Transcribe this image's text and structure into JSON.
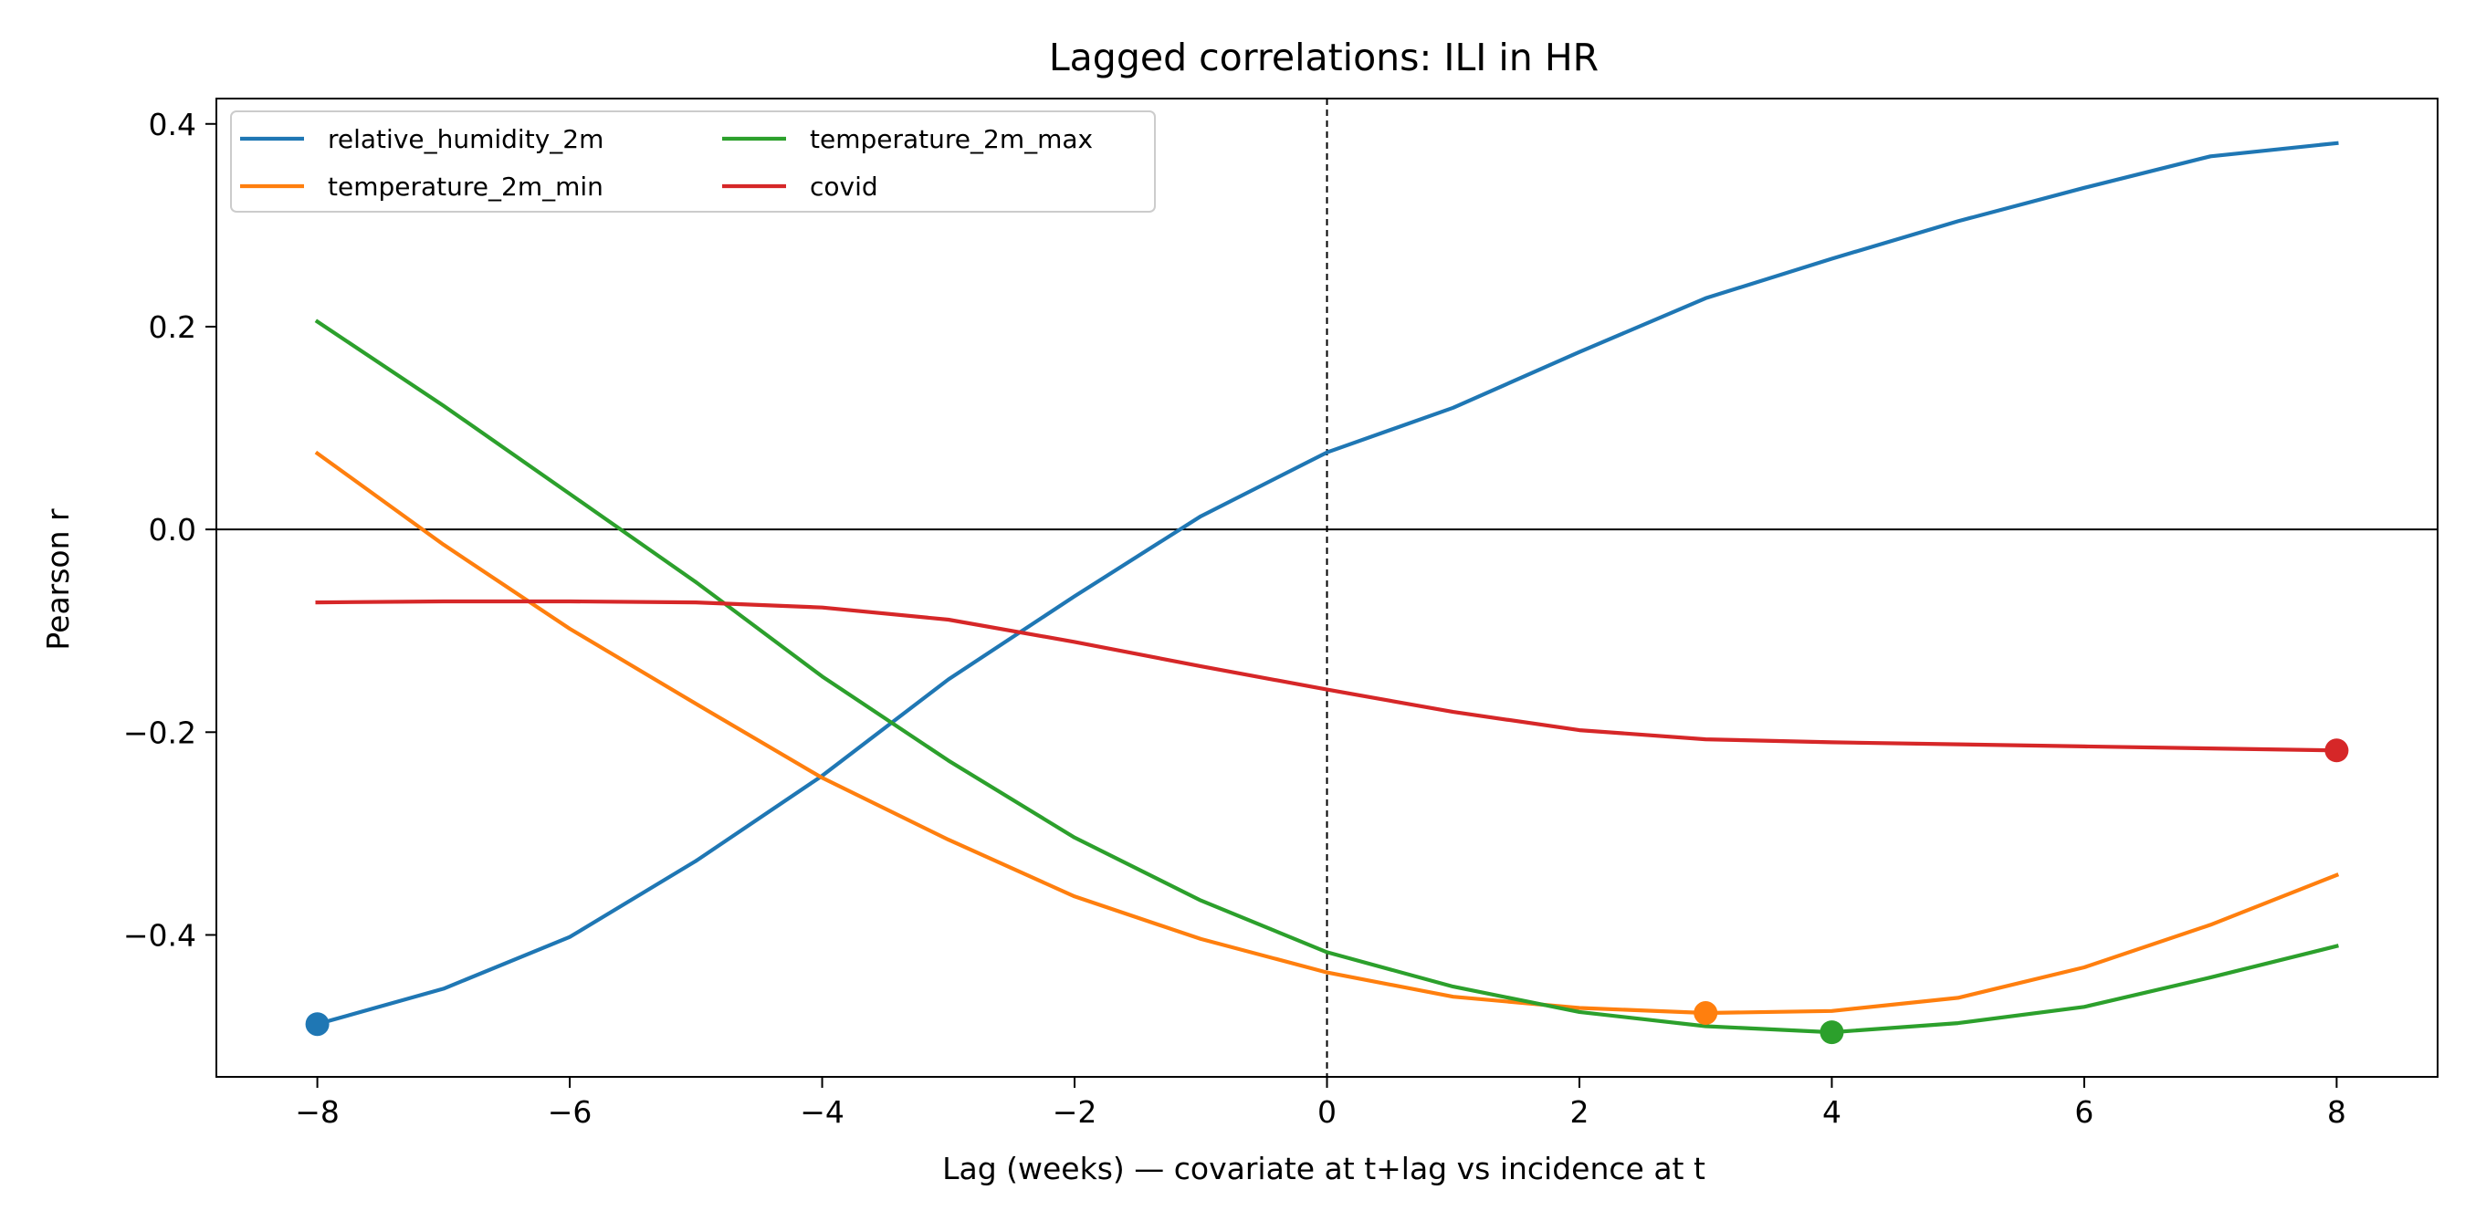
{
  "chart_data": {
    "type": "line",
    "title": "Lagged correlations: ILI in HR",
    "xlabel": "Lag (weeks) — covariate at t+lag vs incidence at t",
    "ylabel": "Pearson r",
    "xlim": [
      -8.8,
      8.8
    ],
    "ylim": [
      -0.54,
      0.425
    ],
    "x_ticks": [
      -8,
      -6,
      -4,
      -2,
      0,
      2,
      4,
      6,
      8
    ],
    "x_tick_labels": [
      "−8",
      "−6",
      "−4",
      "−2",
      "0",
      "2",
      "4",
      "6",
      "8"
    ],
    "y_ticks": [
      0.4,
      0.2,
      0.0,
      -0.2,
      -0.4
    ],
    "y_tick_labels": [
      "0.4",
      "0.2",
      "0.0",
      "−0.2",
      "−0.4"
    ],
    "grid": false,
    "legend_position": "upper-left",
    "legend_columns": 2,
    "reference_lines": {
      "horizontal_y": 0.0,
      "vertical_x": 0
    },
    "x": [
      -8,
      -7,
      -6,
      -5,
      -4,
      -3,
      -2,
      -1,
      0,
      1,
      2,
      3,
      4,
      5,
      6,
      7,
      8
    ],
    "series": [
      {
        "name": "relative_humidity_2m",
        "color": "#1f77b4",
        "values": [
          -0.488,
          -0.453,
          -0.402,
          -0.327,
          -0.243,
          -0.148,
          -0.066,
          0.013,
          0.076,
          0.12,
          0.175,
          0.228,
          0.267,
          0.304,
          0.337,
          0.368,
          0.381
        ],
        "marker": {
          "x": -8,
          "y": -0.488
        }
      },
      {
        "name": "temperature_2m_min",
        "color": "#ff7f0e",
        "values": [
          0.075,
          -0.015,
          -0.098,
          -0.172,
          -0.245,
          -0.306,
          -0.362,
          -0.404,
          -0.437,
          -0.461,
          -0.472,
          -0.477,
          -0.475,
          -0.462,
          -0.432,
          -0.39,
          -0.341
        ],
        "marker": {
          "x": 3,
          "y": -0.477
        }
      },
      {
        "name": "temperature_2m_max",
        "color": "#2ca02c",
        "values": [
          0.205,
          0.122,
          0.035,
          -0.052,
          -0.145,
          -0.228,
          -0.304,
          -0.366,
          -0.417,
          -0.451,
          -0.476,
          -0.49,
          -0.496,
          -0.487,
          -0.471,
          -0.442,
          -0.411
        ],
        "marker": {
          "x": 4,
          "y": -0.496
        }
      },
      {
        "name": "covid",
        "color": "#d62728",
        "values": [
          -0.072,
          -0.071,
          -0.071,
          -0.072,
          -0.077,
          -0.089,
          -0.111,
          -0.135,
          -0.158,
          -0.18,
          -0.198,
          -0.207,
          -0.21,
          -0.212,
          -0.214,
          -0.216,
          -0.218
        ],
        "marker": {
          "x": 8,
          "y": -0.218
        }
      }
    ]
  }
}
